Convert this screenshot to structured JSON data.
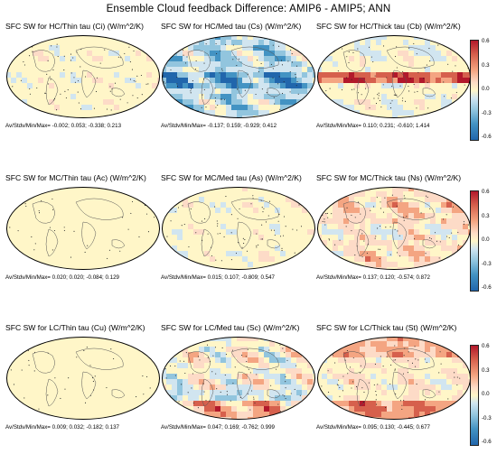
{
  "title": "Ensemble Cloud feedback Difference: AMIP6 - AMIP5; ANN",
  "colorbar": {
    "ticks": [
      "0.6",
      "0.3",
      "0.0",
      "-0.3",
      "-0.6"
    ],
    "colors": [
      "#b2182b",
      "#d6604d",
      "#f4a582",
      "#fddbc7",
      "#fff6c8",
      "#d1e5f0",
      "#92c5de",
      "#4393c3",
      "#2166ac"
    ]
  },
  "panels": [
    {
      "title": "SFC SW for HC/Thin tau (Ci)  (W/m^2/K)",
      "stats": "Av/Stdv/Min/Max=  -0.002;  0.053;  -0.338;  0.213",
      "pattern": "weak",
      "bias": 0
    },
    {
      "title": "SFC SW for HC/Med tau (Cs)  (W/m^2/K)",
      "stats": "Av/Stdv/Min/Max=  -0.137;  0.159;  -0.929;  0.412",
      "pattern": "cool",
      "bias": -0.3
    },
    {
      "title": "SFC SW for HC/Thick tau (Cb)  (W/m^2/K)",
      "stats": "Av/Stdv/Min/Max=  0.110;  0.231;  -0.610;  1.414",
      "pattern": "tropical-red",
      "bias": 0.2
    },
    {
      "title": "SFC SW for MC/Thin tau (Ac)  (W/m^2/K)",
      "stats": "Av/Stdv/Min/Max=  0.020;  0.020;  -0.084;  0.129",
      "pattern": "flat",
      "bias": 0
    },
    {
      "title": "SFC SW for MC/Med tau (As)  (W/m^2/K)",
      "stats": "Av/Stdv/Min/Max=  0.015;  0.107;  -0.809;  0.547",
      "pattern": "weak",
      "bias": 0.05
    },
    {
      "title": "SFC SW for MC/Thick tau (Ns)  (W/m^2/K)",
      "stats": "Av/Stdv/Min/Max=  0.137;  0.120;  -0.574;  0.872",
      "pattern": "warm",
      "bias": 0.25
    },
    {
      "title": "SFC SW for LC/Thin tau (Cu)  (W/m^2/K)",
      "stats": "Av/Stdv/Min/Max=  0.009;  0.032;  -0.182;  0.137",
      "pattern": "flat",
      "bias": 0
    },
    {
      "title": "SFC SW for LC/Med tau (Sc)  (W/m^2/K)",
      "stats": "Av/Stdv/Min/Max=  0.047;  0.169;  -0.762;  0.999",
      "pattern": "mixed",
      "bias": 0.1
    },
    {
      "title": "SFC SW for LC/Thick tau (St)  (W/m^2/K)",
      "stats": "Av/Stdv/Min/Max=  0.095;  0.130;  -0.445;  0.677",
      "pattern": "warm-south",
      "bias": 0.15
    }
  ]
}
